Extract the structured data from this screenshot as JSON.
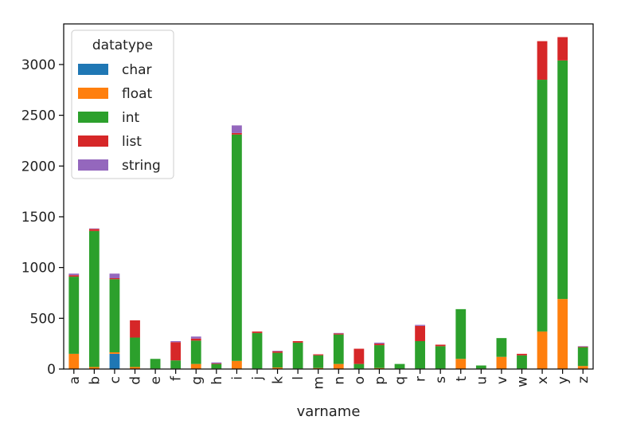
{
  "chart_data": {
    "type": "bar",
    "stacked": true,
    "title": "",
    "xlabel": "varname",
    "ylabel": "",
    "ylim": [
      0,
      3400
    ],
    "yticks": [
      0,
      500,
      1000,
      1500,
      2000,
      2500,
      3000
    ],
    "grid": false,
    "legend": {
      "title": "datatype",
      "placement": "top-left"
    },
    "categories": [
      "a",
      "b",
      "c",
      "d",
      "e",
      "f",
      "g",
      "h",
      "i",
      "j",
      "k",
      "l",
      "m",
      "n",
      "o",
      "p",
      "q",
      "r",
      "s",
      "t",
      "u",
      "v",
      "w",
      "x",
      "y",
      "z"
    ],
    "series": [
      {
        "name": "char",
        "color": "#1f77b4",
        "values": [
          0,
          0,
          150,
          0,
          0,
          0,
          0,
          0,
          0,
          0,
          0,
          0,
          0,
          0,
          0,
          0,
          0,
          0,
          0,
          0,
          0,
          0,
          0,
          0,
          0,
          0
        ]
      },
      {
        "name": "float",
        "color": "#ff7f0e",
        "values": [
          150,
          20,
          15,
          20,
          5,
          5,
          50,
          5,
          80,
          5,
          15,
          5,
          10,
          50,
          5,
          10,
          5,
          5,
          5,
          100,
          5,
          120,
          5,
          370,
          690,
          30
        ]
      },
      {
        "name": "int",
        "color": "#2ca02c",
        "values": [
          760,
          1340,
          720,
          290,
          95,
          80,
          230,
          45,
          2230,
          350,
          145,
          255,
          125,
          290,
          45,
          225,
          45,
          270,
          220,
          490,
          30,
          185,
          130,
          2480,
          2350,
          185
        ]
      },
      {
        "name": "list",
        "color": "#d62728",
        "values": [
          15,
          20,
          10,
          170,
          0,
          180,
          20,
          5,
          15,
          15,
          15,
          15,
          10,
          10,
          150,
          15,
          0,
          150,
          15,
          0,
          0,
          0,
          15,
          380,
          230,
          5
        ]
      },
      {
        "name": "string",
        "color": "#9467bd",
        "values": [
          15,
          5,
          45,
          0,
          0,
          10,
          20,
          10,
          75,
          0,
          5,
          0,
          0,
          5,
          0,
          10,
          0,
          10,
          0,
          0,
          0,
          0,
          0,
          0,
          0,
          5
        ]
      }
    ]
  }
}
